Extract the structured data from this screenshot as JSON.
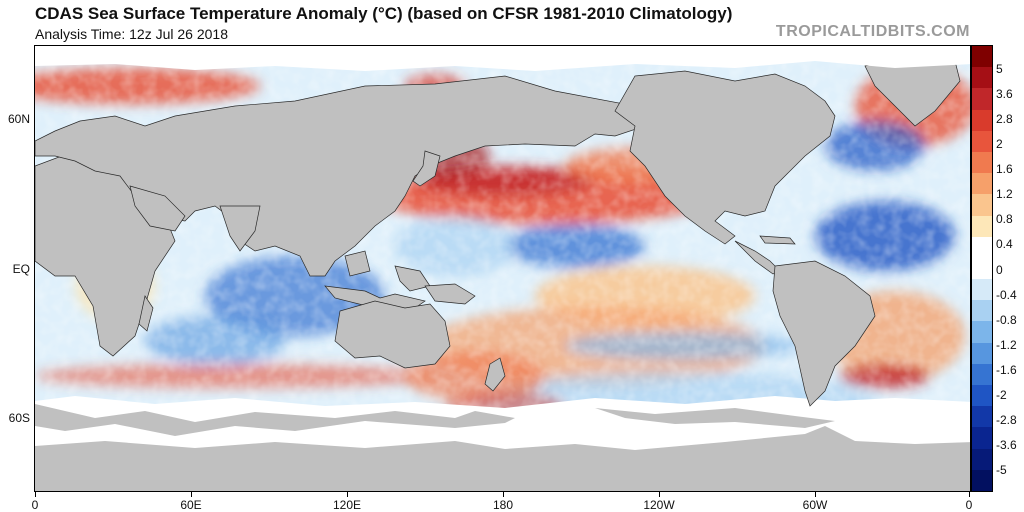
{
  "header": {
    "title": "CDAS Sea Surface Temperature Anomaly (°C) (based on CFSR 1981-2010 Climatology)",
    "subtitle": "Analysis Time: 12z Jul 26 2018",
    "credit": "TROPICALTIDBITS.COM"
  },
  "map": {
    "lat_labels": [
      "60N",
      "EQ",
      "60S"
    ],
    "lon_labels": [
      "0",
      "60E",
      "120E",
      "180",
      "120W",
      "60W",
      "0"
    ],
    "land_color": "#c0c0c0",
    "ice_color": "#ffffff"
  },
  "colorbar": {
    "labels": [
      "5",
      "3.6",
      "2.8",
      "2",
      "1.6",
      "1.2",
      "0.8",
      "0.4",
      "0",
      "-0.4",
      "-0.8",
      "-1.2",
      "-1.6",
      "-2",
      "-2.8",
      "-3.6",
      "-5"
    ],
    "colors": [
      "#7f0000",
      "#a50f15",
      "#c0272a",
      "#d93b2c",
      "#e8553c",
      "#f07a4f",
      "#f6a06a",
      "#fac58e",
      "#fde7b8",
      "#ffffff",
      "#ffffff",
      "#d6eaf8",
      "#a9d1f2",
      "#7cb5ea",
      "#5796df",
      "#3674d2",
      "#1f55c4",
      "#1238a8",
      "#0a2590",
      "#061a78",
      "#021060"
    ]
  }
}
